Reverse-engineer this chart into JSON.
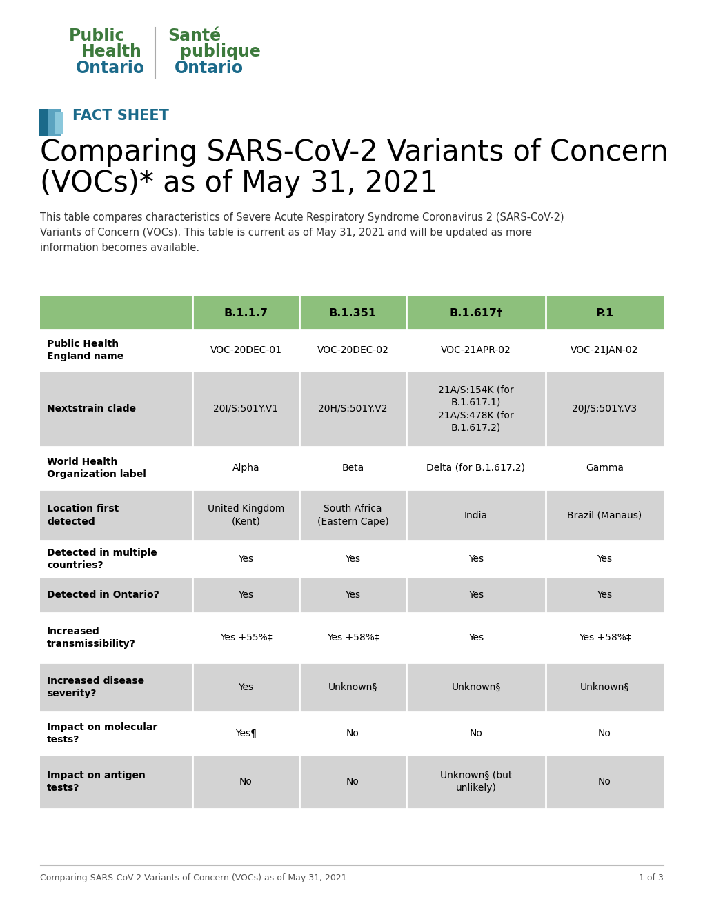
{
  "title_line1": "Comparing SARS-CoV-2 Variants of Concern",
  "title_line2": "(VOCs)* as of May 31, 2021",
  "fact_sheet_label": "FACT SHEET",
  "description": "This table compares characteristics of Severe Acute Respiratory Syndrome Coronavirus 2 (SARS-CoV-2)\nVariants of Concern (VOCs). This table is current as of May 31, 2021 and will be updated as more\ninformation becomes available.",
  "footer": "Comparing SARS-CoV-2 Variants of Concern (VOCs) as of May 31, 2021",
  "page": "1 of 3",
  "header_bg": "#8DC07C",
  "alt_row_bg": "#D3D3D3",
  "white_bg": "#FFFFFF",
  "teal_dark": "#1B6A8A",
  "teal_light": "#5BA3C0",
  "fact_sheet_color": "#1B6A8A",
  "logo_green": "#3D7A3D",
  "logo_blue": "#1B6A8A",
  "columns": [
    "",
    "B.1.1.7",
    "B.1.351",
    "B.1.617†",
    "P.1"
  ],
  "rows": [
    {
      "label": "Public Health\nEngland name",
      "values": [
        "VOC-20DEC-01",
        "VOC-20DEC-02",
        "VOC-21APR-02",
        "VOC-21JAN-02"
      ],
      "shaded": false
    },
    {
      "label": "Nextstrain clade",
      "values": [
        "20I/S:501Y.V1",
        "20H/S:501Y.V2",
        "21A/S:154K (for\nB.1.617.1)\n21A/S:478K (for\nB.1.617.2)",
        "20J/S:501Y.V3"
      ],
      "shaded": true
    },
    {
      "label": "World Health\nOrganization label",
      "values": [
        "Alpha",
        "Beta",
        "Delta (for B.1.617.2)",
        "Gamma"
      ],
      "shaded": false
    },
    {
      "label": "Location first\ndetected",
      "values": [
        "United Kingdom\n(Kent)",
        "South Africa\n(Eastern Cape)",
        "India",
        "Brazil (Manaus)"
      ],
      "shaded": true
    },
    {
      "label": "Detected in multiple\ncountries?",
      "values": [
        "Yes",
        "Yes",
        "Yes",
        "Yes"
      ],
      "shaded": false
    },
    {
      "label": "Detected in Ontario?",
      "values": [
        "Yes",
        "Yes",
        "Yes",
        "Yes"
      ],
      "shaded": true
    },
    {
      "label": "Increased\ntransmissibility?",
      "values": [
        "Yes +55%‡",
        "Yes +58%‡",
        "Yes",
        "Yes +58%‡"
      ],
      "shaded": false
    },
    {
      "label": "Increased disease\nseverity?",
      "values": [
        "Yes",
        "Unknown§",
        "Unknown§",
        "Unknown§"
      ],
      "shaded": true
    },
    {
      "label": "Impact on molecular\ntests?",
      "values": [
        "Yes¶",
        "No",
        "No",
        "No"
      ],
      "shaded": false
    },
    {
      "label": "Impact on antigen\ntests?",
      "values": [
        "No",
        "No",
        "Unknown§ (but\nunlikely)",
        "No"
      ],
      "shaded": true
    }
  ],
  "fig_w": 1020,
  "fig_h": 1320
}
